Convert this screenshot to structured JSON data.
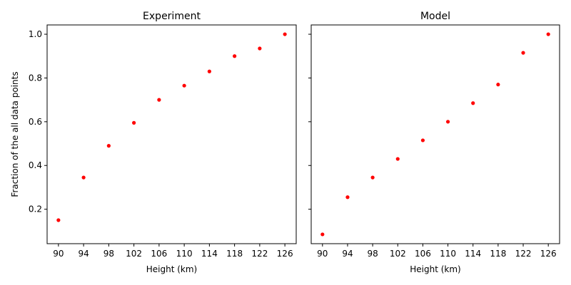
{
  "chart_data": [
    {
      "type": "scatter",
      "title": "Experiment",
      "xlabel": "Height (km)",
      "ylabel": "Fraction of the all data points",
      "xticks": [
        90,
        94,
        98,
        102,
        106,
        110,
        114,
        118,
        122,
        126
      ],
      "yticks": [
        0.2,
        0.4,
        0.6,
        0.8,
        1.0
      ],
      "ytick_labels": [
        "0.2",
        "0.4",
        "0.6",
        "0.8",
        "1.0"
      ],
      "xlim": [
        88.2,
        127.8
      ],
      "ylim": [
        0.0425,
        1.0425
      ],
      "grid": false,
      "series": [
        {
          "color": "#ff0000",
          "x": [
            90,
            94,
            98,
            102,
            106,
            110,
            114,
            118,
            122,
            126
          ],
          "y": [
            0.15,
            0.345,
            0.49,
            0.595,
            0.7,
            0.765,
            0.83,
            0.9,
            0.935,
            1.0
          ]
        }
      ]
    },
    {
      "type": "scatter",
      "title": "Model",
      "xlabel": "Height (km)",
      "ylabel": "",
      "xticks": [
        90,
        94,
        98,
        102,
        106,
        110,
        114,
        118,
        122,
        126
      ],
      "yticks": [
        0.2,
        0.4,
        0.6,
        0.8,
        1.0
      ],
      "ytick_labels": [
        "",
        "",
        "",
        "",
        ""
      ],
      "xlim": [
        88.2,
        127.8
      ],
      "ylim": [
        0.0425,
        1.0425
      ],
      "grid": false,
      "series": [
        {
          "color": "#ff0000",
          "x": [
            90,
            94,
            98,
            102,
            106,
            110,
            114,
            118,
            122,
            126
          ],
          "y": [
            0.085,
            0.255,
            0.345,
            0.43,
            0.515,
            0.6,
            0.685,
            0.77,
            0.915,
            1.0
          ]
        }
      ]
    }
  ]
}
